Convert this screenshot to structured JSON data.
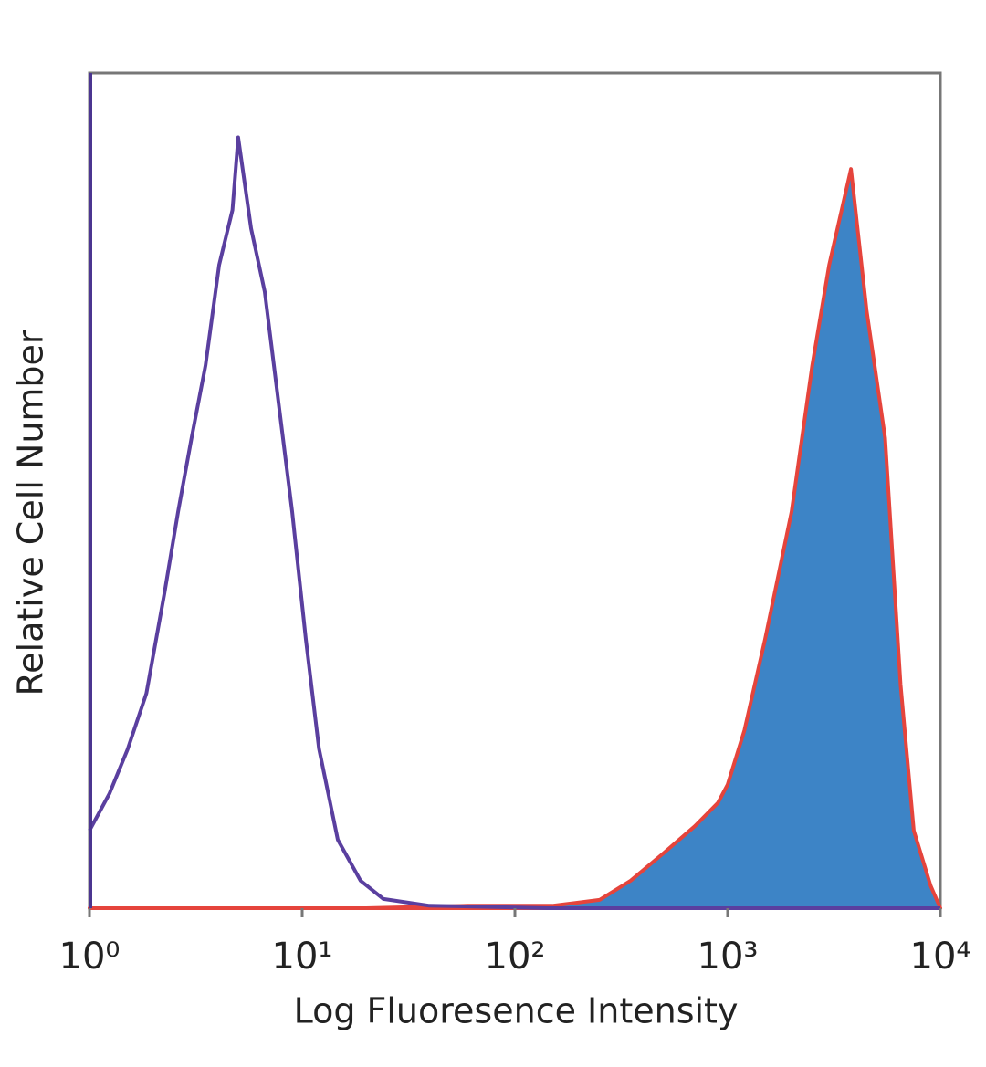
{
  "chart_data": {
    "type": "line",
    "x_label": "Log Fluoresence Intensity",
    "y_label": "Relative Cell Number",
    "log_x": true,
    "xlim": [
      1,
      10000
    ],
    "xticks": [
      {
        "value": 1,
        "label": "10⁰"
      },
      {
        "value": 10,
        "label": "10¹"
      },
      {
        "value": 100,
        "label": "10²"
      },
      {
        "value": 1000,
        "label": "10³"
      },
      {
        "value": 10000,
        "label": "10⁴"
      }
    ],
    "ylim": [
      0,
      100
    ],
    "grid": false,
    "series": [
      {
        "color": "#5a3f9f",
        "filled": false,
        "x": [
          1,
          1.24,
          1.51,
          1.85,
          2.25,
          2.61,
          3.02,
          3.51,
          4.07,
          4.7,
          5.0,
          5.75,
          6.67,
          7.73,
          8.97,
          10.4,
          12,
          14.7,
          18.8,
          24.1,
          39.6,
          64.5,
          142,
          10000
        ],
        "values": [
          9.3,
          13.7,
          19,
          25.7,
          37.7,
          47.5,
          56.3,
          65,
          77,
          83.6,
          92.3,
          81.4,
          73.8,
          60.7,
          47.5,
          32.2,
          19.1,
          8.2,
          3.3,
          1.1,
          0.3,
          0.2,
          0,
          0
        ]
      },
      {
        "color": "#e5443c",
        "fill": "#3d84c6",
        "filled": true,
        "x": [
          1,
          20,
          60,
          150,
          250,
          350,
          500,
          700,
          900,
          1000,
          1200,
          1500,
          2000,
          2500,
          3000,
          3800,
          4500,
          5500,
          6500,
          7500,
          9000,
          10000
        ],
        "values": [
          0,
          0,
          0.3,
          0.3,
          1,
          3.3,
          6.6,
          9.8,
          12.6,
          14.8,
          21.3,
          32.2,
          47.5,
          65,
          77,
          88.5,
          71.6,
          56.3,
          26.8,
          9.3,
          2.7,
          0
        ]
      }
    ]
  }
}
